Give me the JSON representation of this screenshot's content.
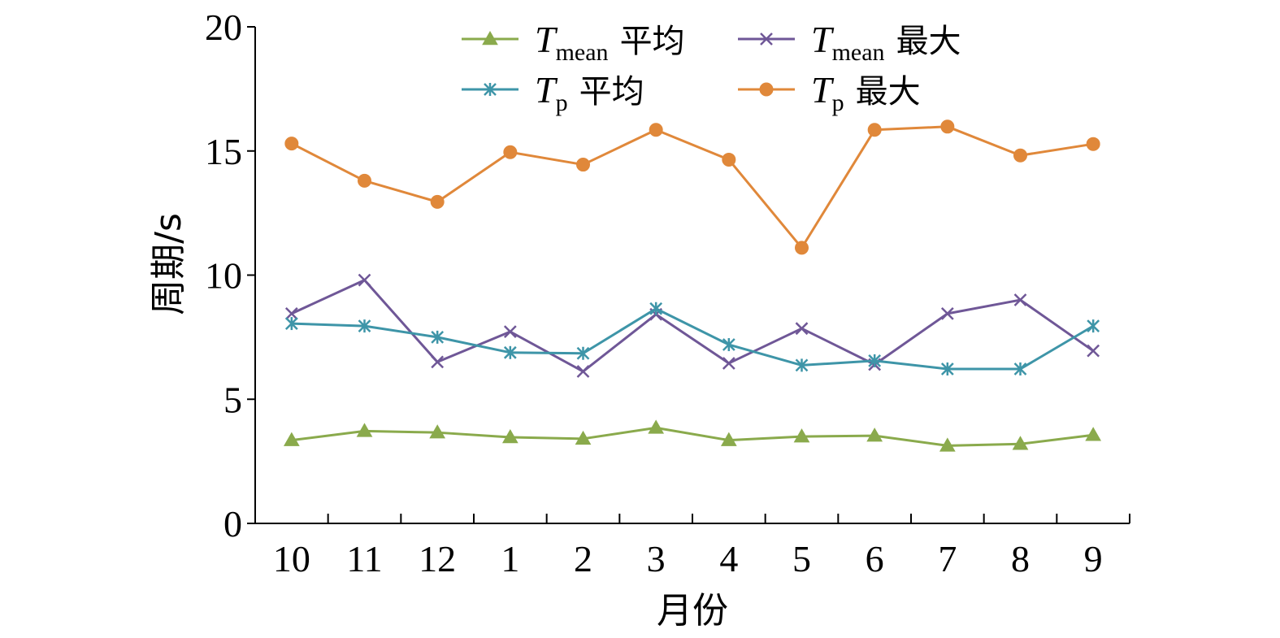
{
  "chart_data": {
    "type": "line",
    "xlabel": "月份",
    "ylabel": "周期/s",
    "categories": [
      "10",
      "11",
      "12",
      "1",
      "2",
      "3",
      "4",
      "5",
      "6",
      "7",
      "8",
      "9"
    ],
    "ylim": [
      0,
      20
    ],
    "yticks": [
      "0",
      "5",
      "10",
      "15",
      "20"
    ],
    "grid": false,
    "legend_position": "top",
    "series": [
      {
        "name": "T_mean 平均",
        "name_main": "T",
        "name_sub": "mean",
        "name_suffix": "平均",
        "marker": "triangle",
        "color": "#8aaa4c",
        "values": [
          3.35,
          3.72,
          3.66,
          3.47,
          3.41,
          3.85,
          3.35,
          3.5,
          3.53,
          3.13,
          3.2,
          3.56
        ]
      },
      {
        "name": "T_mean 最大",
        "name_main": "T",
        "name_sub": "mean",
        "name_suffix": "最大",
        "marker": "x",
        "color": "#6f5797",
        "values": [
          8.45,
          9.8,
          6.5,
          7.72,
          6.12,
          8.42,
          6.45,
          7.85,
          6.4,
          8.45,
          9.0,
          6.95
        ]
      },
      {
        "name": "T_p 平均",
        "name_main": "T",
        "name_sub": "p",
        "name_suffix": "平均",
        "marker": "star",
        "color": "#3e95a8",
        "values": [
          8.05,
          7.95,
          7.5,
          6.88,
          6.85,
          8.65,
          7.2,
          6.37,
          6.55,
          6.22,
          6.22,
          7.95
        ]
      },
      {
        "name": "T_p 最大",
        "name_main": "T",
        "name_sub": "p",
        "name_suffix": "最大",
        "marker": "circle",
        "color": "#e0883a",
        "values": [
          15.3,
          13.8,
          12.95,
          14.95,
          14.45,
          15.85,
          14.65,
          11.1,
          15.85,
          15.98,
          14.82,
          15.28
        ]
      }
    ]
  }
}
